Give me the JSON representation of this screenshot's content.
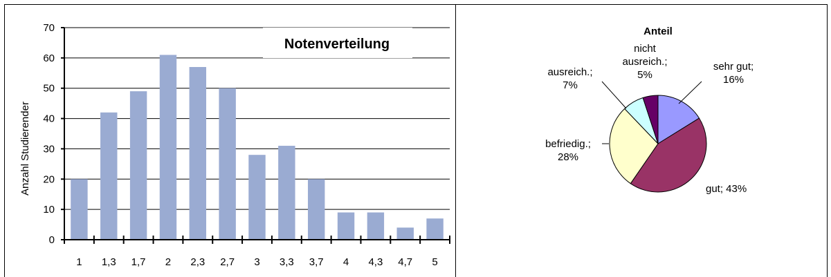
{
  "chart_data": [
    {
      "type": "bar",
      "title": "Notenverteilung",
      "xlabel": "",
      "ylabel": "Anzahl Studierender",
      "ylim": [
        0,
        70
      ],
      "yticks": [
        "0",
        "10",
        "20",
        "30",
        "40",
        "50",
        "60",
        "70"
      ],
      "categories": [
        "1",
        "1,3",
        "1,7",
        "2",
        "2,3",
        "2,7",
        "3",
        "3,3",
        "3,7",
        "4",
        "4,3",
        "4,7",
        "5"
      ],
      "values": [
        20,
        42,
        49,
        61,
        57,
        50,
        28,
        31,
        20,
        9,
        9,
        4,
        7
      ],
      "grid": true,
      "colors": {
        "bar": "#9aabd2",
        "grid": "#000000",
        "border": "#000000"
      }
    },
    {
      "type": "pie",
      "title": "Anteil",
      "slices": [
        {
          "name": "sehr gut",
          "value": 16,
          "label": [
            "sehr gut;",
            "16%"
          ],
          "color": "#9999ff"
        },
        {
          "name": "gut",
          "value": 43,
          "label": [
            "gut; 43%"
          ],
          "color": "#993366"
        },
        {
          "name": "befriedig.",
          "value": 28,
          "label": [
            "befriedig.;",
            "28%"
          ],
          "color": "#ffffcc"
        },
        {
          "name": "ausreich.",
          "value": 7,
          "label": [
            "ausreich.;",
            "7%"
          ],
          "color": "#ccffff"
        },
        {
          "name": "nicht ausreich.",
          "value": 5,
          "label": [
            "nicht",
            "ausreich.;",
            "5%"
          ],
          "color": "#660066"
        }
      ]
    }
  ]
}
